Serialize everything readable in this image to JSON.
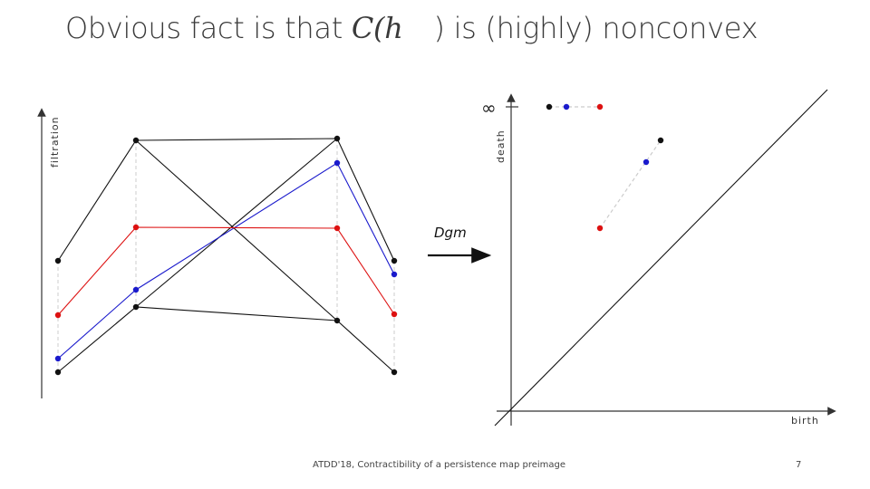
{
  "slide": {
    "title_prefix": "Obvious fact is that",
    "title_math": "C(h",
    "title_suffix": ") is (highly) nonconvex",
    "footer": "ATDD'18, Contractibility of a persistence map preimage",
    "page_number": "7"
  },
  "colors": {
    "black": "#111111",
    "blue": "#1a1acc",
    "red": "#dd1111",
    "guide": "#cccccc"
  },
  "left_plot": {
    "y_axis_label": "filtration"
  },
  "map_label": "Dgm",
  "right_plot": {
    "y_axis_label": "death",
    "x_axis_label": "birth",
    "infinity_label": "∞"
  }
}
